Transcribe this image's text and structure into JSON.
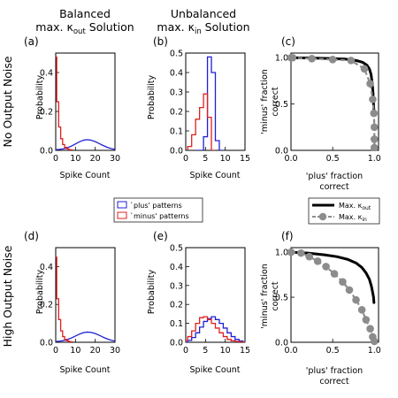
{
  "column_titles": {
    "left_line1": "Balanced",
    "left_line2_prefix": "max. κ",
    "left_line2_sub": "out",
    "left_line2_suffix": " Solution",
    "mid_line1": "Unbalanced",
    "mid_line2_prefix": "max. κ",
    "mid_line2_sub": "in",
    "mid_line2_suffix": " Solution"
  },
  "row_titles": {
    "top": "No Output Noise",
    "bottom": "High Output Noise"
  },
  "panel_letters": [
    "(a)",
    "(b)",
    "(c)",
    "(d)",
    "(e)",
    "(f)"
  ],
  "axis_labels": {
    "probability": "Probability",
    "spike_count": "Spike Count",
    "minus_line1": "'minus' fraction",
    "minus_line2": "correct",
    "plus_line1": "'plus' fraction",
    "plus_line2": "correct"
  },
  "hist_legend": {
    "plus_label": "`plus' patterns",
    "minus_label": "`minus' patterns",
    "plus_color": "#1f1fd6",
    "minus_color": "#e01f1f"
  },
  "curve_legend": {
    "out_prefix": "Max. κ",
    "out_sub": "out",
    "in_prefix": "Max. κ",
    "in_sub": "in",
    "out_color": "#000000",
    "in_color": "#8c8c8c"
  },
  "chart_data": [
    {
      "id": "a",
      "type": "line",
      "xlabel": "Spike Count",
      "ylabel": "Probability",
      "xlim": [
        0,
        30
      ],
      "ylim": [
        0,
        0.5
      ],
      "xticks": [
        0,
        10,
        20,
        30
      ],
      "yticks": [
        0.0,
        0.2,
        0.4
      ],
      "ytick_labels": [
        "0.0",
        "0.2",
        "0.4"
      ],
      "series": [
        {
          "role": "plus",
          "style": "smooth",
          "x": [
            0,
            2,
            4,
            6,
            8,
            10,
            12,
            14,
            16,
            18,
            20,
            22,
            24,
            26,
            28,
            30
          ],
          "y": [
            0.003,
            0.005,
            0.008,
            0.014,
            0.022,
            0.033,
            0.044,
            0.052,
            0.055,
            0.052,
            0.045,
            0.035,
            0.025,
            0.016,
            0.009,
            0.005
          ]
        },
        {
          "role": "minus",
          "style": "step",
          "x": [
            0,
            1,
            2,
            3,
            4,
            5,
            6,
            7,
            8
          ],
          "y": [
            0.48,
            0.25,
            0.12,
            0.06,
            0.03,
            0.015,
            0.008,
            0.004,
            0.002
          ]
        }
      ]
    },
    {
      "id": "b",
      "type": "line",
      "xlabel": "Spike Count",
      "ylabel": "Probability",
      "xlim": [
        0,
        15
      ],
      "ylim": [
        0,
        0.5
      ],
      "xticks": [
        0,
        5,
        10,
        15
      ],
      "yticks": [
        0.0,
        0.1,
        0.2,
        0.3,
        0.4,
        0.5
      ],
      "ytick_labels": [
        "0.0",
        "0.1",
        "0.2",
        "0.3",
        "0.4",
        "0.5"
      ],
      "series": [
        {
          "role": "plus",
          "style": "step",
          "x": [
            3,
            4,
            5,
            6,
            7,
            8,
            9
          ],
          "y": [
            0.0,
            0.0,
            0.07,
            0.48,
            0.4,
            0.05,
            0.0
          ]
        },
        {
          "role": "minus",
          "style": "step",
          "x": [
            1,
            2,
            3,
            4,
            5,
            6,
            7
          ],
          "y": [
            0.02,
            0.08,
            0.16,
            0.22,
            0.29,
            0.17,
            0.0
          ]
        }
      ]
    },
    {
      "id": "c",
      "type": "line",
      "xlabel": "'plus' fraction correct",
      "ylabel": "'minus' fraction correct",
      "xlim": [
        0,
        1.05
      ],
      "ylim": [
        0,
        1.05
      ],
      "xticks": [
        0.0,
        0.5,
        1.0
      ],
      "yticks": [
        0.0,
        0.5,
        1.0
      ],
      "ytick_labels": [
        "0.0",
        "0.5",
        "1.0"
      ],
      "series": [
        {
          "role": "max_kout",
          "style": "line",
          "x": [
            0.0,
            0.3,
            0.5,
            0.65,
            0.78,
            0.86,
            0.91,
            0.94,
            0.96,
            0.975,
            0.985,
            0.99,
            0.995
          ],
          "y": [
            1.0,
            0.995,
            0.99,
            0.985,
            0.97,
            0.95,
            0.92,
            0.88,
            0.82,
            0.72,
            0.6,
            0.5,
            0.42
          ]
        },
        {
          "role": "max_kin",
          "style": "dashed-markers",
          "x": [
            0.0,
            0.02,
            0.25,
            0.5,
            0.72,
            0.88,
            0.95,
            0.98,
            0.995,
            1.0,
            1.0,
            1.0
          ],
          "y": [
            1.0,
            1.0,
            0.99,
            0.98,
            0.97,
            0.88,
            0.72,
            0.55,
            0.4,
            0.25,
            0.12,
            0.03
          ]
        }
      ]
    },
    {
      "id": "d",
      "type": "line",
      "xlabel": "Spike Count",
      "ylabel": "Probability",
      "xlim": [
        0,
        30
      ],
      "ylim": [
        0,
        0.5
      ],
      "xticks": [
        0,
        10,
        20,
        30
      ],
      "yticks": [
        0.0,
        0.2,
        0.4
      ],
      "ytick_labels": [
        "0.0",
        "0.2",
        "0.4"
      ],
      "series": [
        {
          "role": "plus",
          "style": "smooth",
          "x": [
            0,
            2,
            4,
            6,
            8,
            10,
            12,
            14,
            16,
            18,
            20,
            22,
            24,
            26,
            28,
            30
          ],
          "y": [
            0.004,
            0.006,
            0.009,
            0.015,
            0.023,
            0.033,
            0.043,
            0.051,
            0.054,
            0.052,
            0.046,
            0.037,
            0.027,
            0.018,
            0.011,
            0.006
          ]
        },
        {
          "role": "minus",
          "style": "step",
          "x": [
            0,
            1,
            2,
            3,
            4,
            5,
            6,
            7,
            8
          ],
          "y": [
            0.45,
            0.23,
            0.12,
            0.06,
            0.03,
            0.015,
            0.008,
            0.004,
            0.002
          ]
        }
      ]
    },
    {
      "id": "e",
      "type": "line",
      "xlabel": "Spike Count",
      "ylabel": "Probability",
      "xlim": [
        0,
        15
      ],
      "ylim": [
        0,
        0.5
      ],
      "xticks": [
        0,
        5,
        10,
        15
      ],
      "yticks": [
        0.0,
        0.1,
        0.2,
        0.3,
        0.4,
        0.5
      ],
      "ytick_labels": [
        "0.0",
        "0.1",
        "0.2",
        "0.3",
        "0.4",
        "0.5"
      ],
      "series": [
        {
          "role": "plus",
          "style": "step",
          "x": [
            0,
            1,
            2,
            3,
            4,
            5,
            6,
            7,
            8,
            9,
            10,
            11,
            12,
            13,
            14,
            15
          ],
          "y": [
            0.0,
            0.01,
            0.025,
            0.05,
            0.08,
            0.11,
            0.125,
            0.135,
            0.12,
            0.1,
            0.075,
            0.05,
            0.03,
            0.015,
            0.007,
            0.0
          ]
        },
        {
          "role": "minus",
          "style": "step",
          "x": [
            0,
            1,
            2,
            3,
            4,
            5,
            6,
            7,
            8,
            9,
            10,
            11,
            12,
            13,
            14,
            15
          ],
          "y": [
            0.01,
            0.03,
            0.06,
            0.1,
            0.13,
            0.135,
            0.12,
            0.1,
            0.075,
            0.05,
            0.03,
            0.015,
            0.008,
            0.004,
            0.002,
            0.0
          ]
        }
      ]
    },
    {
      "id": "f",
      "type": "line",
      "xlabel": "'plus' fraction correct",
      "ylabel": "'minus' fraction correct",
      "xlim": [
        0,
        1.05
      ],
      "ylim": [
        0,
        1.05
      ],
      "xticks": [
        0.0,
        0.5,
        1.0
      ],
      "yticks": [
        0.0,
        0.5,
        1.0
      ],
      "ytick_labels": [
        "0.0",
        "0.5",
        "1.0"
      ],
      "series": [
        {
          "role": "max_kout",
          "style": "line",
          "x": [
            0.0,
            0.2,
            0.4,
            0.55,
            0.68,
            0.78,
            0.85,
            0.9,
            0.94,
            0.965,
            0.98,
            0.99,
            0.995
          ],
          "y": [
            1.0,
            0.99,
            0.97,
            0.95,
            0.92,
            0.88,
            0.83,
            0.77,
            0.7,
            0.62,
            0.55,
            0.5,
            0.44
          ]
        },
        {
          "role": "max_kin",
          "style": "dashed-markers",
          "x": [
            0.0,
            0.12,
            0.22,
            0.32,
            0.42,
            0.52,
            0.62,
            0.7,
            0.78,
            0.85,
            0.9,
            0.95,
            0.98,
            1.0
          ],
          "y": [
            1.0,
            0.99,
            0.95,
            0.9,
            0.84,
            0.76,
            0.67,
            0.58,
            0.47,
            0.36,
            0.25,
            0.15,
            0.06,
            0.01
          ]
        }
      ]
    }
  ]
}
